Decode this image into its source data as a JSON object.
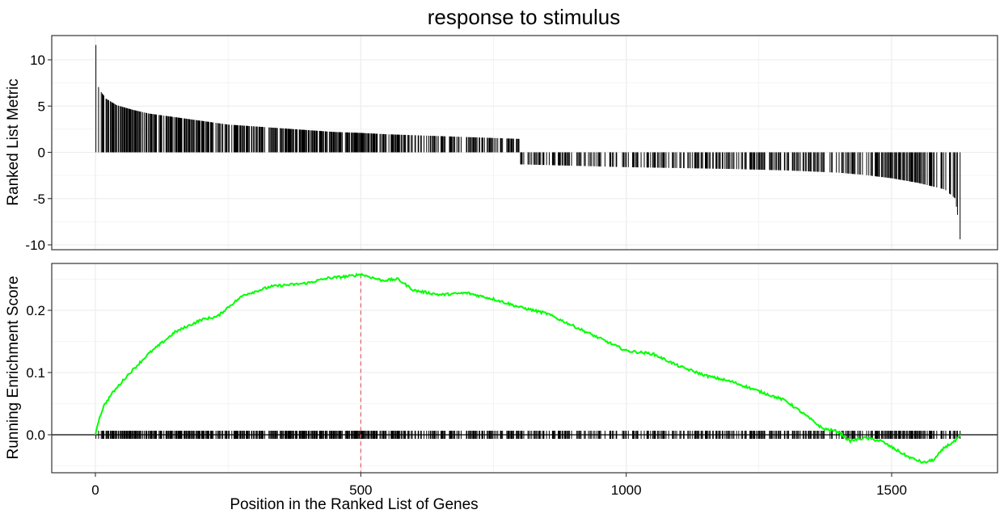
{
  "chart_data": {
    "type": "line",
    "title": "response to stimulus",
    "xlabel": "Position in the Ranked List of Genes",
    "xlim": [
      0,
      1640
    ],
    "x_ticks": [
      0,
      500,
      1000,
      1500
    ],
    "x_tick_labels": [
      "0",
      "500",
      "1000",
      "1500"
    ],
    "n_genes": 1630,
    "leading_edge_position": 500,
    "colors": {
      "running_score": "#00ff00",
      "leading_edge": "#e06060",
      "bars": "#000000",
      "grid": "#ebebeb"
    },
    "panels": [
      {
        "name": "ranked_list_metric",
        "type": "bar",
        "ylabel": "Ranked List Metric",
        "ylim": [
          -10.5,
          12.6
        ],
        "y_ticks": [
          10,
          5,
          0,
          -5,
          -10
        ],
        "y_tick_labels": [
          "10",
          "5",
          "0",
          "-5",
          "-10"
        ],
        "metric_profile": {
          "x": [
            0,
            3,
            10,
            20,
            40,
            70,
            100,
            150,
            200,
            250,
            300,
            350,
            400,
            450,
            500,
            550,
            600,
            650,
            700,
            750,
            800,
            801,
            900,
            1000,
            1100,
            1200,
            1300,
            1400,
            1450,
            1500,
            1550,
            1600,
            1620,
            1630
          ],
          "y": [
            11.6,
            7.4,
            6.6,
            5.8,
            5.1,
            4.6,
            4.2,
            3.8,
            3.4,
            3.0,
            2.8,
            2.6,
            2.4,
            2.2,
            2.1,
            1.95,
            1.85,
            1.75,
            1.65,
            1.55,
            1.45,
            -1.3,
            -1.45,
            -1.6,
            -1.7,
            -1.8,
            -1.95,
            -2.2,
            -2.45,
            -2.8,
            -3.3,
            -4.0,
            -5.0,
            -9.4
          ]
        }
      },
      {
        "name": "running_enrichment_score",
        "type": "line",
        "ylabel": "Running Enrichment Score",
        "ylim": [
          -0.06,
          0.28
        ],
        "y_ticks": [
          0.2,
          0.1,
          0.0
        ],
        "y_tick_labels": [
          "0.2",
          "0.1",
          "0.0"
        ],
        "series": [
          {
            "x": [
              0,
              5,
              15,
              30,
              60,
              100,
              150,
              200,
              230,
              250,
              280,
              300,
              330,
              350,
              380,
              400,
              440,
              480,
              500,
              540,
              570,
              600,
              650,
              700,
              750,
              800,
              850,
              900,
              950,
              1000,
              1050,
              1100,
              1150,
              1200,
              1250,
              1300,
              1340,
              1370,
              1400,
              1420,
              1450,
              1480,
              1500,
              1530,
              1560,
              1580,
              1600,
              1620,
              1630
            ],
            "y": [
              0.0,
              0.02,
              0.045,
              0.065,
              0.095,
              0.13,
              0.165,
              0.185,
              0.19,
              0.205,
              0.225,
              0.23,
              0.238,
              0.24,
              0.242,
              0.244,
              0.252,
              0.255,
              0.258,
              0.248,
              0.25,
              0.232,
              0.225,
              0.228,
              0.218,
              0.205,
              0.195,
              0.175,
              0.155,
              0.135,
              0.13,
              0.11,
              0.095,
              0.085,
              0.07,
              0.055,
              0.03,
              0.01,
              0.005,
              -0.01,
              -0.005,
              -0.01,
              -0.02,
              -0.035,
              -0.045,
              -0.04,
              -0.02,
              -0.01,
              0.0
            ]
          }
        ],
        "hit_tick_range": [
          -0.0065,
          0.0065
        ]
      }
    ]
  }
}
